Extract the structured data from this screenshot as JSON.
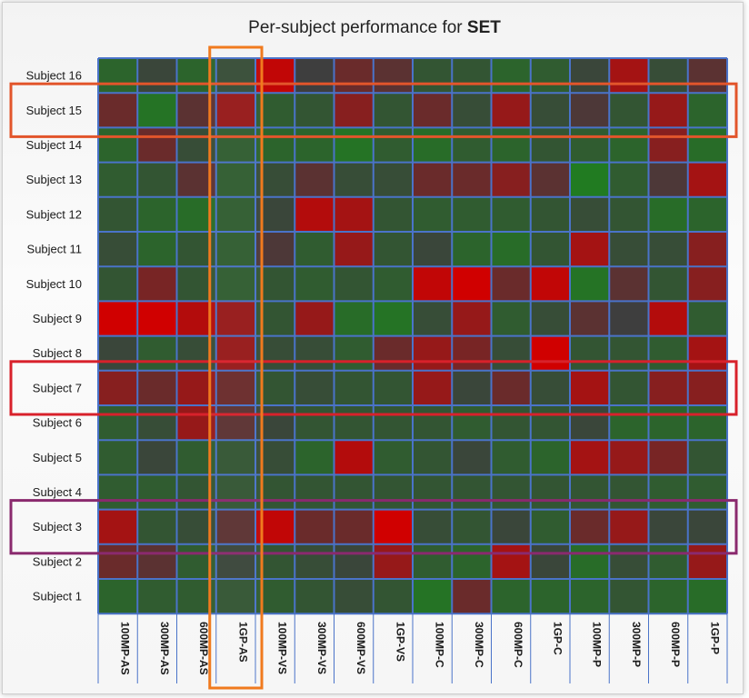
{
  "title_prefix": "Per-subject performance for ",
  "title_bold": "SET",
  "chart_data": {
    "type": "heatmap",
    "title": "Per-subject performance for SET",
    "rows": [
      "Subject 16",
      "Subject 15",
      "Subject 14",
      "Subject 13",
      "Subject 12",
      "Subject 11",
      "Subject 10",
      "Subject 9",
      "Subject 8",
      "Subject 7",
      "Subject 6",
      "Subject 5",
      "Subject 4",
      "Subject 3",
      "Subject 2",
      "Subject 1"
    ],
    "columns": [
      "100MP-AS",
      "300MP-AS",
      "600MP-AS",
      "1GP-AS",
      "100MP-VS",
      "300MP-VS",
      "600MP-VS",
      "1GP-VS",
      "100MP-C",
      "300MP-C",
      "600MP-C",
      "1GP-C",
      "100MP-P",
      "300MP-P",
      "600MP-P",
      "1GP-P"
    ],
    "value_scale": "-1 = red, 0 = dark gray, +1 = green",
    "values": [
      [
        0.5,
        0.1,
        0.5,
        0.2,
        -0.9,
        0.0,
        -0.3,
        -0.2,
        0.3,
        0.3,
        0.5,
        0.4,
        0.1,
        -0.7,
        0.2,
        -0.2
      ],
      [
        -0.3,
        0.7,
        -0.2,
        -0.6,
        0.4,
        0.3,
        -0.5,
        0.3,
        -0.3,
        0.2,
        -0.6,
        0.2,
        -0.1,
        0.3,
        -0.6,
        0.5
      ],
      [
        0.5,
        -0.3,
        0.2,
        0.4,
        0.5,
        0.5,
        0.7,
        0.4,
        0.6,
        0.4,
        0.5,
        0.3,
        0.4,
        0.5,
        -0.5,
        0.6
      ],
      [
        0.4,
        0.3,
        -0.2,
        0.4,
        0.2,
        -0.2,
        0.2,
        0.2,
        -0.3,
        -0.3,
        -0.5,
        -0.2,
        0.8,
        0.4,
        -0.1,
        -0.7
      ],
      [
        0.3,
        0.5,
        0.6,
        0.4,
        0.1,
        -0.8,
        -0.7,
        0.3,
        0.4,
        0.4,
        0.4,
        0.3,
        0.2,
        0.3,
        0.6,
        0.5
      ],
      [
        0.2,
        0.5,
        0.3,
        0.4,
        -0.1,
        0.4,
        -0.6,
        0.3,
        0.1,
        0.5,
        0.6,
        0.3,
        -0.7,
        0.2,
        0.2,
        -0.5
      ],
      [
        0.3,
        -0.4,
        0.3,
        0.4,
        0.3,
        0.4,
        0.3,
        0.4,
        -0.9,
        -1.0,
        -0.3,
        -0.9,
        0.7,
        -0.2,
        0.3,
        -0.5
      ],
      [
        -1.0,
        -1.0,
        -0.8,
        -0.6,
        0.3,
        -0.6,
        0.6,
        0.7,
        0.2,
        -0.6,
        0.4,
        0.2,
        -0.2,
        0.0,
        -0.8,
        0.4
      ],
      [
        0.1,
        0.4,
        0.2,
        -0.6,
        0.2,
        0.2,
        0.4,
        -0.3,
        -0.6,
        -0.4,
        0.2,
        -1.0,
        0.3,
        0.3,
        0.4,
        -0.7
      ],
      [
        -0.5,
        -0.3,
        -0.6,
        -0.3,
        0.3,
        0.2,
        0.3,
        0.3,
        -0.6,
        0.1,
        -0.3,
        0.2,
        -0.7,
        0.3,
        -0.5,
        -0.5
      ],
      [
        0.4,
        0.2,
        -0.6,
        -0.2,
        0.1,
        0.3,
        0.3,
        0.3,
        0.3,
        0.4,
        0.3,
        0.3,
        0.1,
        0.5,
        0.5,
        0.5
      ],
      [
        0.4,
        0.1,
        0.4,
        0.3,
        0.2,
        0.5,
        -0.8,
        0.4,
        0.3,
        0.1,
        0.4,
        0.5,
        -0.7,
        -0.6,
        -0.4,
        0.3
      ],
      [
        0.4,
        0.4,
        0.3,
        0.3,
        0.3,
        0.3,
        0.3,
        0.3,
        0.3,
        0.3,
        0.3,
        0.3,
        0.3,
        0.3,
        0.4,
        0.4
      ],
      [
        -0.7,
        0.3,
        0.2,
        -0.2,
        -0.9,
        -0.3,
        -0.3,
        -1.0,
        0.2,
        0.3,
        0.1,
        0.4,
        -0.3,
        -0.6,
        0.1,
        0.1
      ],
      [
        -0.3,
        -0.2,
        0.4,
        0.1,
        0.3,
        0.2,
        0.1,
        -0.6,
        0.4,
        0.5,
        -0.7,
        0.1,
        0.6,
        0.2,
        0.4,
        -0.6
      ],
      [
        0.5,
        0.4,
        0.4,
        0.3,
        0.4,
        0.3,
        0.2,
        0.3,
        0.7,
        -0.3,
        0.5,
        0.5,
        0.5,
        0.3,
        0.5,
        0.6
      ]
    ],
    "highlights": [
      {
        "kind": "row",
        "target": "Subject 15",
        "color": "#e2552b"
      },
      {
        "kind": "row",
        "target": "Subject 7",
        "color": "#d8212b"
      },
      {
        "kind": "row",
        "target": "Subject 3",
        "color": "#8a2a6e"
      },
      {
        "kind": "column",
        "target": "1GP-AS",
        "color": "#f07a1e"
      }
    ],
    "grid_color": "#4a73c9",
    "colors": {
      "negative": "#d00000",
      "neutral": "#3e3e3e",
      "positive": "#1a8a1a"
    },
    "legend": "none"
  }
}
